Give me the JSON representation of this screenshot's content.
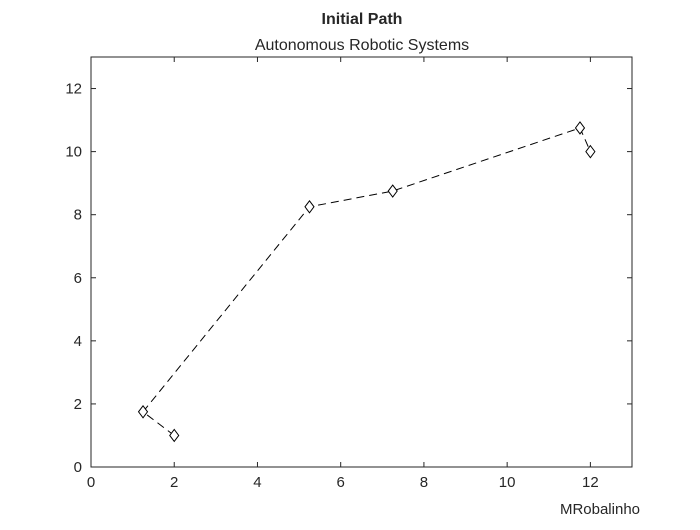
{
  "chart_data": {
    "type": "line",
    "title": "Initial Path",
    "subtitle": "Autonomous Robotic Systems",
    "xlabel": "MRobalinho",
    "ylabel": "",
    "xlim": [
      0,
      13
    ],
    "ylim": [
      0,
      13
    ],
    "xticks": [
      "0",
      "2",
      "4",
      "6",
      "8",
      "10",
      "12"
    ],
    "yticks": [
      "0",
      "2",
      "4",
      "6",
      "8",
      "10",
      "12"
    ],
    "grid": false,
    "line_style": "dashed",
    "marker": "diamond",
    "colors": {
      "line": "#000000",
      "axes": "#262626"
    },
    "series": [
      {
        "x": [
          2,
          1.25,
          5.25,
          7.25,
          11.75,
          12
        ],
        "y": [
          1,
          1.75,
          8.25,
          8.75,
          10.75,
          10
        ]
      }
    ]
  }
}
